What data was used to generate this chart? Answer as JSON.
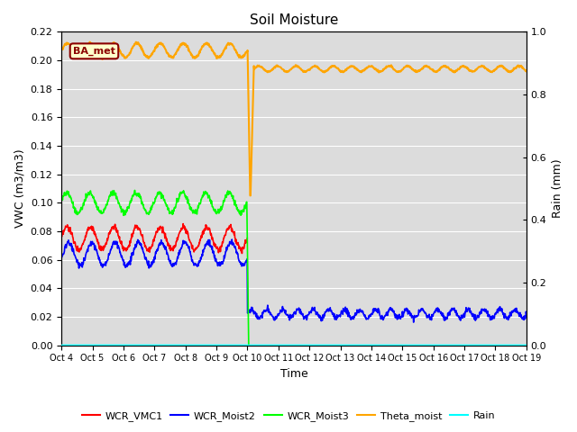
{
  "title": "Soil Moisture",
  "ylabel_left": "VWC (m3/m3)",
  "ylabel_right": "Rain (mm)",
  "xlabel": "Time",
  "ylim_left": [
    0.0,
    0.22
  ],
  "ylim_right": [
    0.0,
    1.0
  ],
  "bg_color": "#dcdcdc",
  "grid_color": "white",
  "label_box_text": "BA_met",
  "label_box_facecolor": "#ffffcc",
  "label_box_edgecolor": "#8b0000",
  "legend_labels": [
    "WCR_VMC1",
    "WCR_Moist2",
    "WCR_Moist3",
    "Theta_moist",
    "Rain"
  ],
  "legend_colors": [
    "red",
    "blue",
    "lime",
    "orange",
    "cyan"
  ],
  "xtick_labels": [
    "Oct 4",
    "Oct 5",
    "Oct 6",
    "Oct 7",
    "Oct 8",
    "Oct 9",
    "Oct 10",
    "Oct 11",
    "Oct 12",
    "Oct 13",
    "Oct 14",
    "Oct 15",
    "Oct 16",
    "Oct 17",
    "Oct 18",
    "Oct 19"
  ],
  "ytick_left": [
    0.0,
    0.02,
    0.04,
    0.06,
    0.08,
    0.1,
    0.12,
    0.14,
    0.16,
    0.18,
    0.2,
    0.22
  ],
  "ytick_right": [
    0.0,
    0.2,
    0.4,
    0.6,
    0.8,
    1.0
  ],
  "phase1_pts": 500,
  "phase2_pts": 750,
  "osc_period_days": 0.75
}
